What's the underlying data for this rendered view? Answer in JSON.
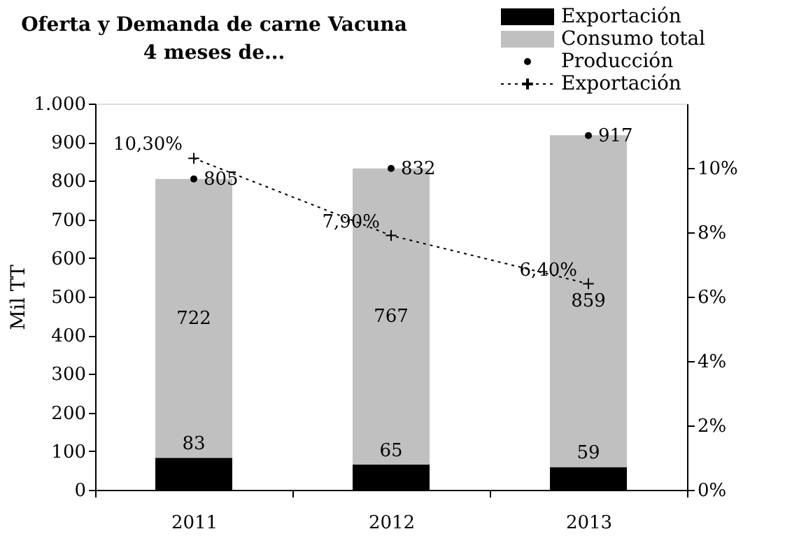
{
  "chart_data": {
    "type": "bar",
    "title": "Oferta y Demanda de carne Vacuna",
    "subtitle": "4 meses de...",
    "ylabel": "Mil TT",
    "categories": [
      "2011",
      "2012",
      "2013"
    ],
    "stacked": true,
    "legend": "top right",
    "ylim": [
      0,
      1000
    ],
    "yticks": [
      0,
      100,
      200,
      300,
      400,
      500,
      600,
      700,
      800,
      900,
      {
        "value": 1000,
        "label": "1.000"
      }
    ],
    "y2lim": [
      0,
      12
    ],
    "y2ticks": [
      {
        "value": 0,
        "label": "0%"
      },
      {
        "value": 2,
        "label": "2%"
      },
      {
        "value": 4,
        "label": "4%"
      },
      {
        "value": 6,
        "label": "6%"
      },
      {
        "value": 8,
        "label": "8%"
      },
      {
        "value": 10,
        "label": "10%"
      }
    ],
    "series": [
      {
        "name": "Exportación",
        "color": "#000000",
        "values": [
          83,
          65,
          59
        ],
        "value_labels": [
          "83",
          "65",
          "59"
        ]
      },
      {
        "name": "Consumo total",
        "color": "#c0c0c0",
        "values": [
          722,
          767,
          859
        ],
        "value_labels": [
          "722",
          "767",
          "859"
        ]
      },
      {
        "name": "Producción",
        "type": "scatter",
        "color": "#000000",
        "marker": "circle",
        "values": [
          805,
          832,
          917
        ],
        "value_labels": [
          "805",
          "832",
          "917"
        ]
      },
      {
        "name": "Exportación",
        "type": "line",
        "axis": "y2",
        "color": "#000000",
        "marker": "cross",
        "line_style": "dotted",
        "values": [
          10.3,
          7.9,
          6.4
        ],
        "value_labels": [
          "10,30%",
          "7,90%",
          "6,40%"
        ]
      }
    ]
  }
}
